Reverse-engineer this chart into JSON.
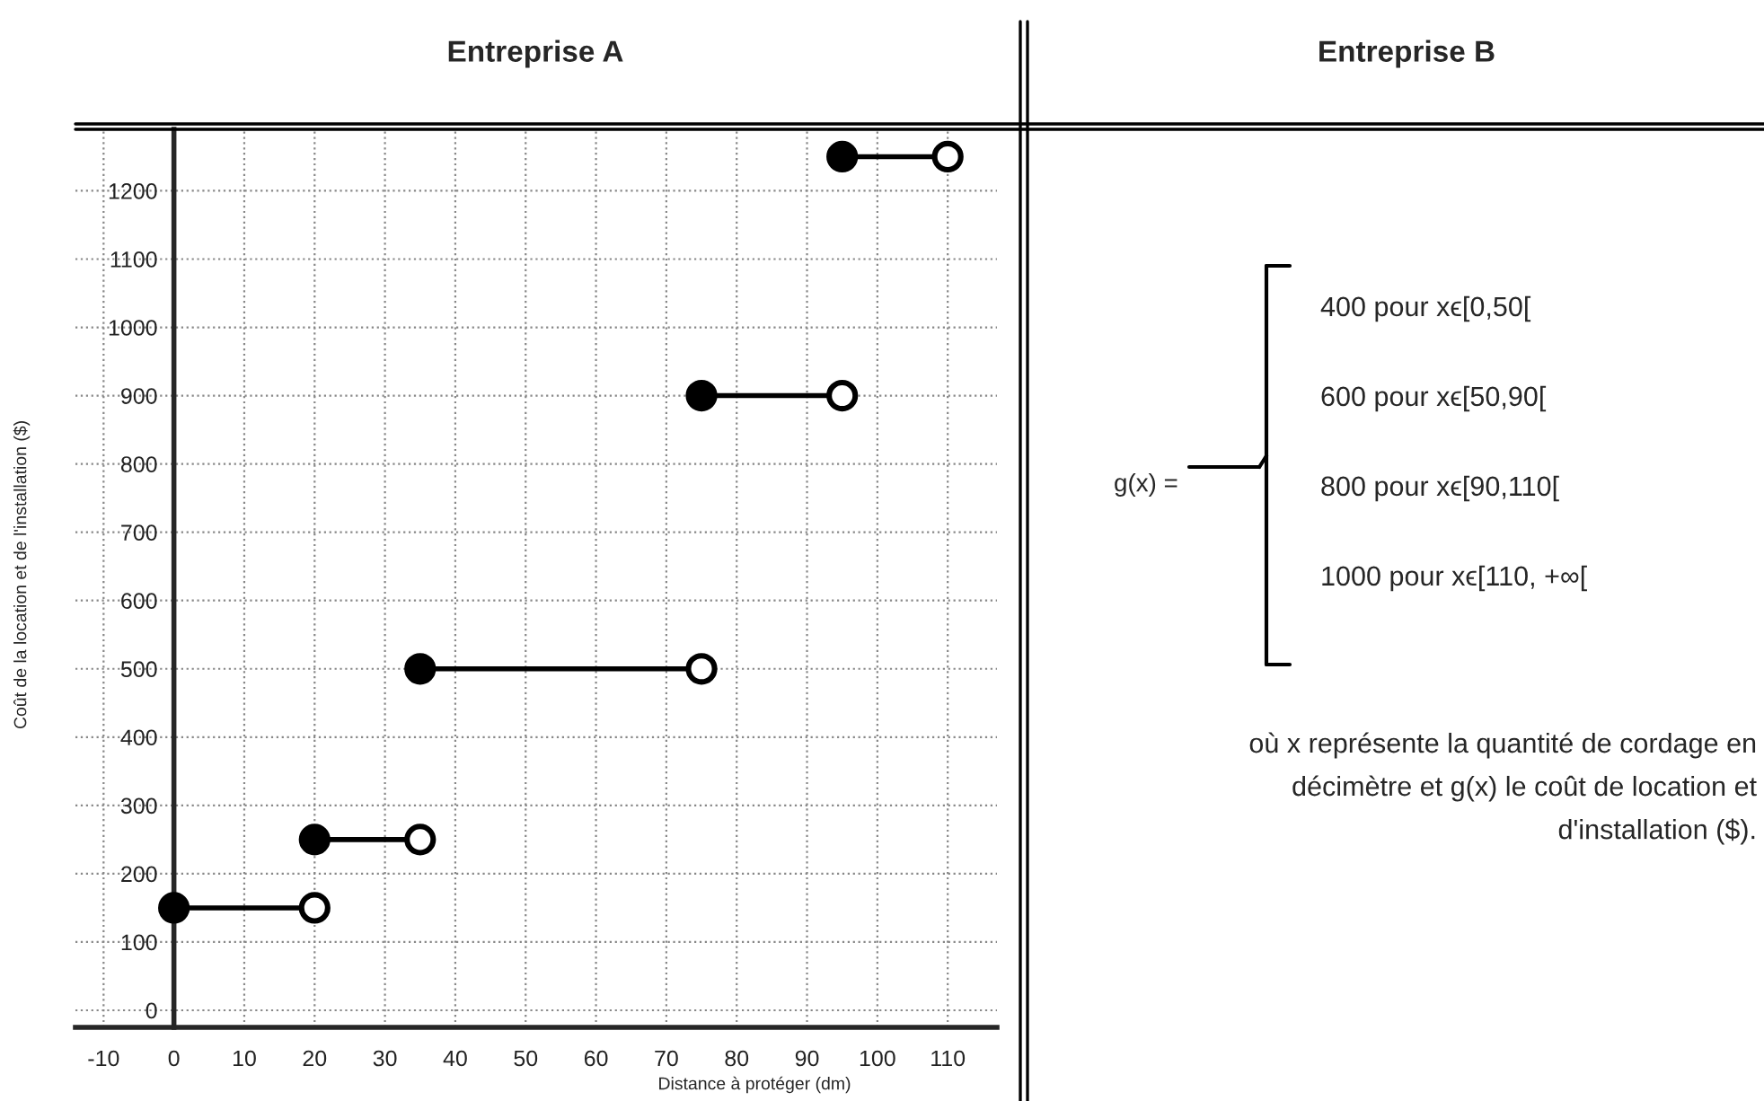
{
  "chart_data": [
    {
      "type": "line",
      "title": "Entreprise A",
      "xlabel": "Distance à protéger (dm)",
      "ylabel": "Coût de la location et de l'installation ($)",
      "series": [
        {
          "type": "line",
          "color": "#000000",
          "x": [
            0,
            20
          ],
          "values": [
            150,
            150
          ]
        },
        {
          "type": "line",
          "color": "#000000",
          "x": [
            20,
            35
          ],
          "values": [
            250,
            250
          ]
        },
        {
          "type": "line",
          "color": "#000000",
          "x": [
            35,
            75
          ],
          "values": [
            500,
            500
          ]
        },
        {
          "type": "line",
          "color": "#000000",
          "x": [
            75,
            95
          ],
          "values": [
            900,
            900
          ]
        },
        {
          "type": "line",
          "color": "#000000",
          "x": [
            95,
            110
          ],
          "values": [
            1250,
            1250
          ]
        },
        {
          "type": "scatter",
          "color": "#000000",
          "x": [
            0,
            20,
            35,
            75,
            95
          ],
          "values": [
            150,
            250,
            500,
            900,
            1250
          ],
          "marker": "circle"
        },
        {
          "type": "scatter",
          "color": "#ffffff",
          "x": [
            20,
            35,
            75,
            95,
            110
          ],
          "values": [
            150,
            250,
            500,
            900,
            1250
          ],
          "marker": "circle"
        }
      ],
      "xlim": [
        -14,
        117
      ],
      "ylim": [
        -25,
        1290
      ],
      "xticks": [
        -10,
        0,
        10,
        20,
        30,
        40,
        50,
        60,
        70,
        80,
        90,
        100,
        110
      ],
      "yticks": [
        0,
        100,
        200,
        300,
        400,
        500,
        600,
        700,
        800,
        900,
        1000,
        1100,
        1200
      ],
      "grid": true,
      "line_style": "solid"
    },
    {
      "type": "other",
      "title": "Entreprise B",
      "annotations": [
        "g(x) =",
        "400 pour xϵ[0,50[",
        "600 pour xϵ[50,90[",
        "800 pour xϵ[90,110[",
        "1000 pour xϵ[110, +∞[",
        "où x représente la quantité de cordage en",
        "décimètre et g(x) le coût de location et",
        "d'installation ($)."
      ]
    }
  ]
}
